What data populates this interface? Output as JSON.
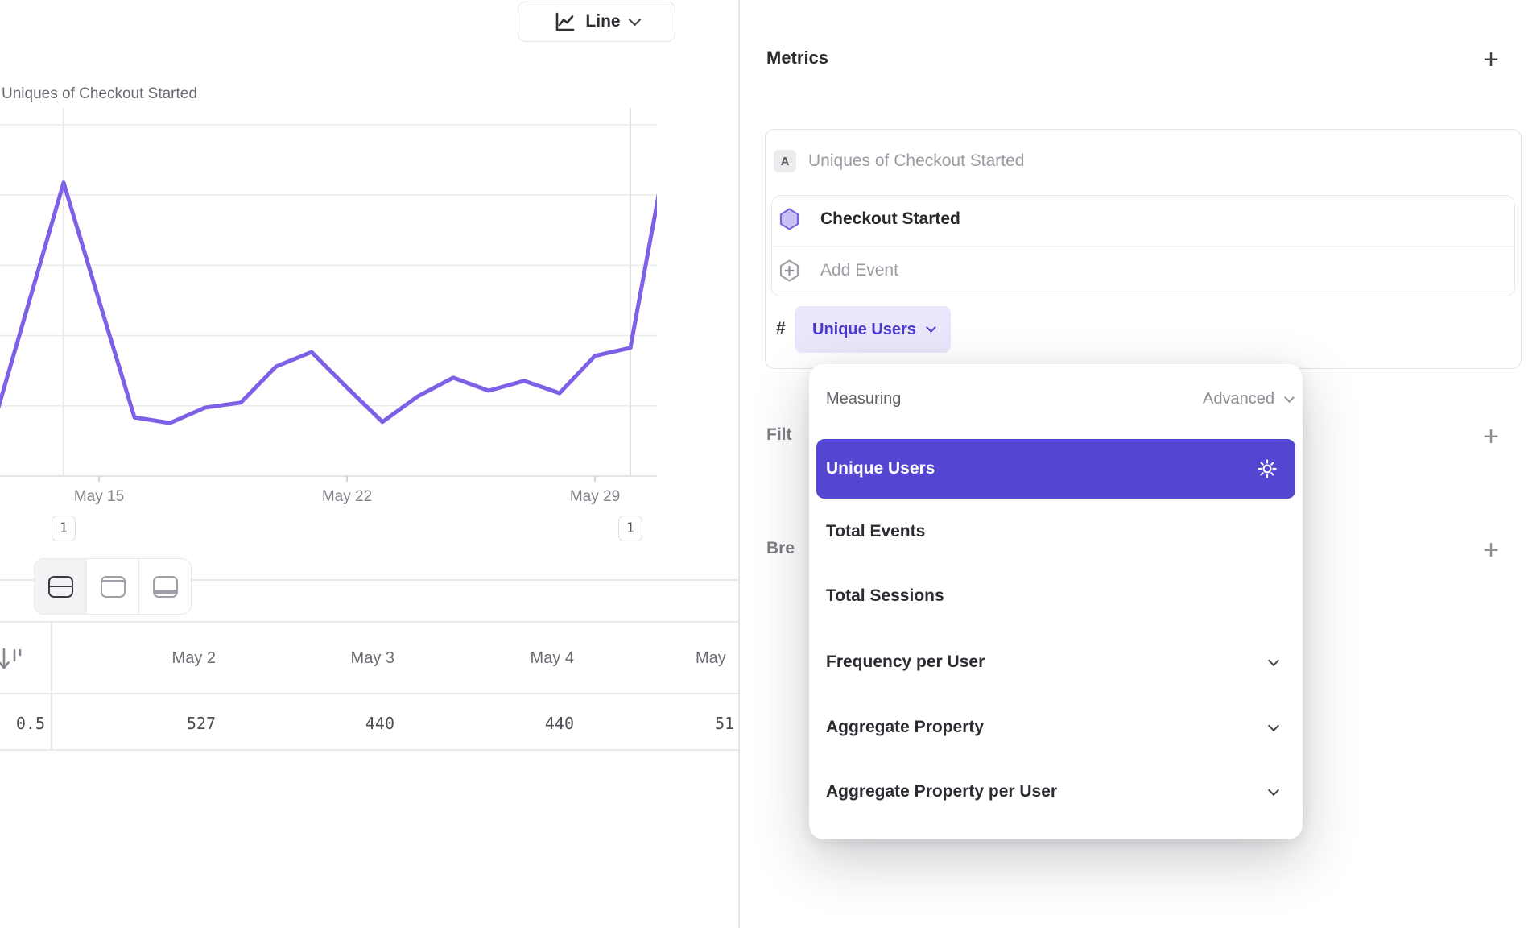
{
  "toolbar": {
    "chart_type": "Line"
  },
  "chart_title": "Uniques of Checkout Started",
  "chart_data": {
    "type": "line",
    "title": "Uniques of Checkout Started",
    "x": [
      "May 12",
      "May 13",
      "May 14",
      "May 15",
      "May 16",
      "May 17",
      "May 18",
      "May 19",
      "May 20",
      "May 21",
      "May 22",
      "May 23",
      "May 24",
      "May 25",
      "May 26",
      "May 27",
      "May 28",
      "May 29",
      "May 30",
      "May 31"
    ],
    "series": [
      {
        "name": "Uniques of Checkout Started",
        "values": [
          140,
          487,
          835,
          500,
          167,
          151,
          195,
          209,
          312,
          353,
          252,
          154,
          227,
          280,
          243,
          271,
          236,
          342,
          365,
          910
        ]
      }
    ],
    "x_tick_labels": [
      "May 15",
      "May 22",
      "May 29"
    ],
    "y_gridlines": [
      200,
      400,
      600,
      800,
      1000
    ],
    "ylim": [
      0,
      1100
    ],
    "grid": true,
    "legend": false,
    "line_color": "#7d60e6",
    "annotations": [
      {
        "label": "1",
        "x": "May 14"
      },
      {
        "label": "1",
        "x": "May 30"
      }
    ]
  },
  "view_toggle": {
    "options": [
      "split-view",
      "chart-only",
      "table-only"
    ],
    "active": "split-view"
  },
  "table": {
    "sort_icon": "sort-descending",
    "columns": [
      "May 2",
      "May 3",
      "May 4",
      "May"
    ],
    "row_label": "0.5",
    "values": [
      "527",
      "440",
      "440",
      "51"
    ]
  },
  "metrics": {
    "title": "Metrics",
    "add_label": "+",
    "series_badge": "A",
    "series_name": "Uniques of Checkout Started",
    "event_name": "Checkout Started",
    "add_event_label": "Add Event",
    "count_symbol": "#",
    "measurement_value": "Unique Users"
  },
  "sections": {
    "filters_partial": "Filt",
    "filters_add": "+",
    "breakdowns_partial": "Bre",
    "breakdowns_add": "+"
  },
  "dropdown": {
    "label": "Measuring",
    "mode": "Advanced",
    "items": [
      {
        "label": "Unique Users",
        "selected": true,
        "gear": true
      },
      {
        "label": "Total Events"
      },
      {
        "label": "Total Sessions"
      },
      {
        "label": "Frequency per User",
        "expandable": true
      },
      {
        "label": "Aggregate Property",
        "expandable": true
      },
      {
        "label": "Aggregate Property per User",
        "expandable": true
      }
    ]
  },
  "colors": {
    "line_purple": "#7d60e6",
    "accent_purple": "#5546d2",
    "chip_bg": "#eae6fb",
    "chip_text": "#4b3bd3"
  }
}
